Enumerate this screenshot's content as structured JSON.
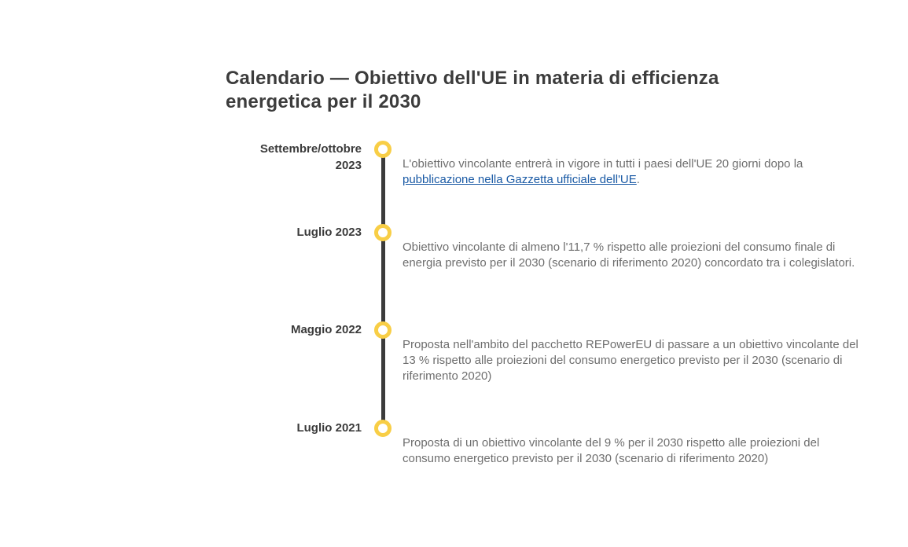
{
  "page": {
    "title": "Calendario — Obiettivo dell'UE in materia di efficienza energetica per il 2030"
  },
  "colors": {
    "title_text": "#3c3c3c",
    "date_text": "#3b3b3b",
    "body_text": "#6e6e6e",
    "link_blue": "#1a5aa5",
    "timeline_line": "#3b3b3b",
    "marker_yellow": "#f8ce46",
    "page_bg": "#ffffff"
  },
  "timeline": {
    "marker_icon": "yellow-ring-circle",
    "entries": [
      {
        "date": "Settembre/ottobre 2023",
        "text_before_link": "L'obiettivo vincolante entrerà in vigore in tutti i paesi dell'UE 20 giorni dopo la ",
        "link_text": "pubblicazione nella Gazzetta ufficiale dell'UE",
        "text_after_link": "."
      },
      {
        "date": "Luglio 2023",
        "text": "Obiettivo vincolante di almeno l'11,7 % rispetto alle proiezioni del consumo finale di energia previsto per il 2030 (scenario di riferimento 2020) concordato tra i colegislatori."
      },
      {
        "date": "Maggio 2022",
        "text": "Proposta nell'ambito del pacchetto REPowerEU di passare a un obiettivo vincolante del 13 % rispetto alle proiezioni del consumo energetico previsto per il 2030 (scenario di riferimento 2020)"
      },
      {
        "date": "Luglio 2021",
        "text": "Proposta di un obiettivo vincolante del 9 % per il 2030 rispetto alle proiezioni del consumo energetico previsto per il 2030 (scenario di riferimento 2020)"
      }
    ]
  }
}
